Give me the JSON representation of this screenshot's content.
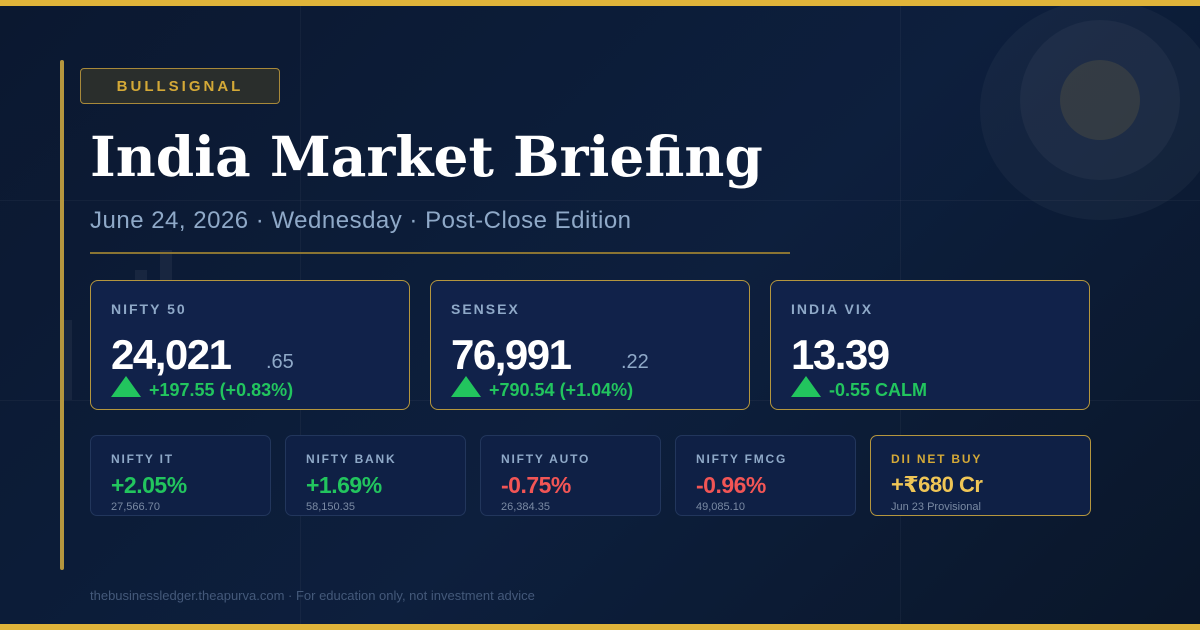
{
  "brand": "BULLSIGNAL",
  "title": "India Market Briefing",
  "subtitle": "June 24, 2026 · Wednesday · Post-Close Edition",
  "indices": [
    {
      "name": "NIFTY 50",
      "value": "24,021",
      "decimals": ".65",
      "change": "+197.55 (+0.83%)"
    },
    {
      "name": "SENSEX",
      "value": "76,991",
      "decimals": ".22",
      "change": "+790.54 (+1.04%)"
    },
    {
      "name": "INDIA VIX",
      "value": "13.39",
      "change": "-0.55 CALM"
    }
  ],
  "sectors": [
    {
      "name": "NIFTY IT",
      "change": "+2.05%",
      "value": "27,566.70"
    },
    {
      "name": "NIFTY BANK",
      "change": "+1.69%",
      "value": "58,150.35"
    },
    {
      "name": "NIFTY AUTO",
      "change": "-0.75%",
      "value": "26,384.35"
    },
    {
      "name": "NIFTY FMCG",
      "change": "-0.96%",
      "value": "49,085.10"
    }
  ],
  "dii": {
    "name": "DII NET BUY",
    "value": "+₹680 Cr",
    "note": "Jun 23 Provisional"
  },
  "footer": "thebusinessledger.theapurva.com · For education only, not investment advice"
}
